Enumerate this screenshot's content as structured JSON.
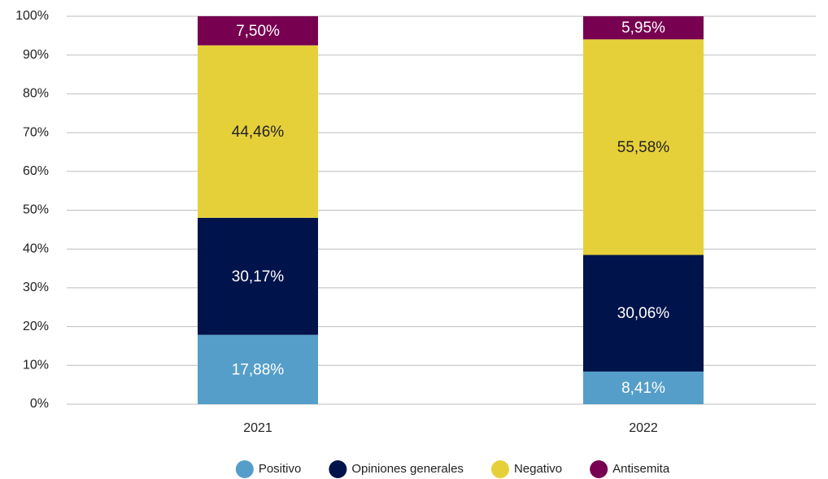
{
  "chart_data": {
    "type": "stacked_bar",
    "categories": [
      "2021",
      "2022"
    ],
    "series": [
      {
        "name": "Positivo",
        "color": "#559ec9",
        "label_color": "#ffffff",
        "values": [
          17.88,
          8.41
        ],
        "value_labels": [
          "17,88%",
          "8,41%"
        ]
      },
      {
        "name": "Opiniones generales",
        "color": "#00134a",
        "label_color": "#ffffff",
        "values": [
          30.17,
          30.06
        ],
        "value_labels": [
          "30,17%",
          "30,06%"
        ]
      },
      {
        "name": "Negativo",
        "color": "#e6d03a",
        "label_color": "#222222",
        "values": [
          44.46,
          55.58
        ],
        "value_labels": [
          "44,46%",
          "55,58%"
        ]
      },
      {
        "name": "Antisemita",
        "color": "#770050",
        "label_color": "#ffffff",
        "values": [
          7.5,
          5.95
        ],
        "value_labels": [
          "7,50%",
          "5,95%"
        ]
      }
    ],
    "ylim": [
      0,
      100
    ],
    "yticks": [
      {
        "value": 0,
        "label": "0%"
      },
      {
        "value": 10,
        "label": "10%"
      },
      {
        "value": 20,
        "label": "20%"
      },
      {
        "value": 30,
        "label": "30%"
      },
      {
        "value": 40,
        "label": "40%"
      },
      {
        "value": 50,
        "label": "50%"
      },
      {
        "value": 60,
        "label": "60%"
      },
      {
        "value": 70,
        "label": "70%"
      },
      {
        "value": 80,
        "label": "80%"
      },
      {
        "value": 90,
        "label": "90%"
      },
      {
        "value": 100,
        "label": "100%"
      }
    ],
    "grid": true,
    "legend": "bottom"
  }
}
